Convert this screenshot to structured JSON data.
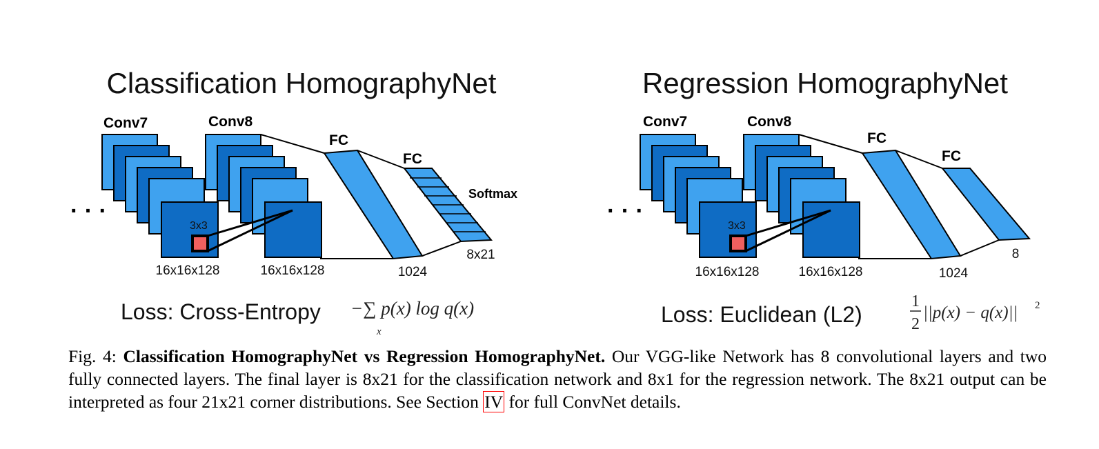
{
  "left": {
    "title": "Classification HomographyNet",
    "conv7": "Conv7",
    "conv8": "Conv8",
    "fc1": "FC",
    "fc2": "FC",
    "softmax": "Softmax",
    "kernel": "3x3",
    "dim_conv7": "16x16x128",
    "dim_conv8": "16x16x128",
    "dim_fc1": "1024",
    "dim_out": "8x21",
    "loss": "Loss: Cross-Entropy",
    "formula": "−∑ p(x) log q(x)",
    "formula_sub": "x"
  },
  "right": {
    "title": "Regression HomographyNet",
    "conv7": "Conv7",
    "conv8": "Conv8",
    "fc1": "FC",
    "fc2": "FC",
    "kernel": "3x3",
    "dim_conv7": "16x16x128",
    "dim_conv8": "16x16x128",
    "dim_fc1": "1024",
    "dim_out": "8",
    "loss": "Loss: Euclidean (L2)",
    "formula_num": "1",
    "formula_den": "2",
    "formula": "||p(x) − q(x)||",
    "formula_exp": "2"
  },
  "ellipsis": "· · ·",
  "caption": {
    "prefix": "Fig. 4: ",
    "bold": "Classification HomographyNet vs Regression HomographyNet.",
    "text1": " Our VGG-like Network has 8 convolutional layers and two fully connected layers. The final layer is 8x21 for the classification network and 8x1 for the regression network. The 8x21 output can be interpreted as four 21x21 corner distributions. See Section ",
    "ref": "IV",
    "text2": " for full ConvNet details."
  },
  "colors": {
    "light_blue": "#3fa2ef",
    "dark_blue": "#0f6cc4",
    "kernel_red": "#f0605f",
    "ref_box": "#ff0000"
  }
}
